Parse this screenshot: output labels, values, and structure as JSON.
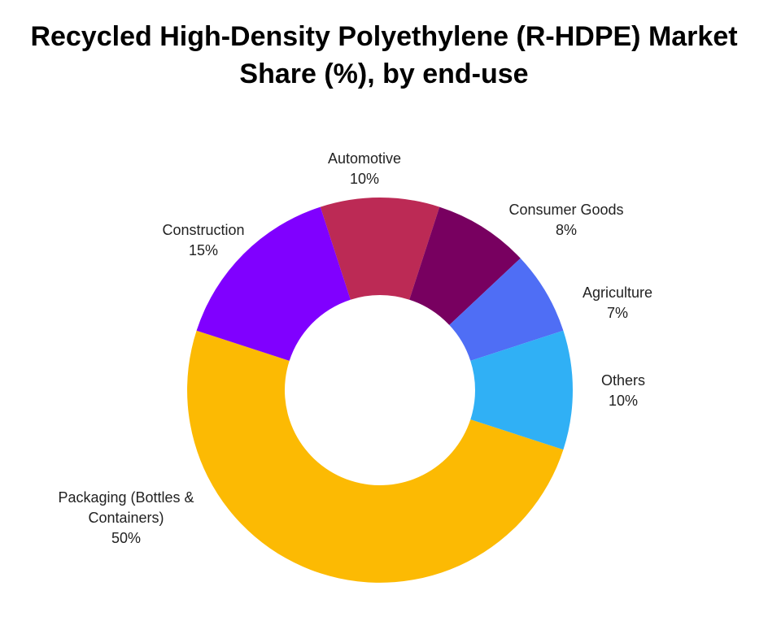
{
  "chart_data": {
    "type": "donut",
    "title": "Recycled High-Density Polyethylene (R-HDPE) Market Share (%), by end-use",
    "categories": [
      "Automotive",
      "Consumer Goods",
      "Agriculture",
      "Others",
      "Packaging (Bottles & Containers)",
      "Construction"
    ],
    "values": [
      10,
      8,
      7,
      10,
      50,
      15
    ],
    "value_labels": [
      "10%",
      "8%",
      "7%",
      "10%",
      "50%",
      "15%"
    ],
    "colors": [
      "#bc2a55",
      "#780060",
      "#4f6ef5",
      "#30b0f5",
      "#fcba03",
      "#8000ff"
    ]
  }
}
